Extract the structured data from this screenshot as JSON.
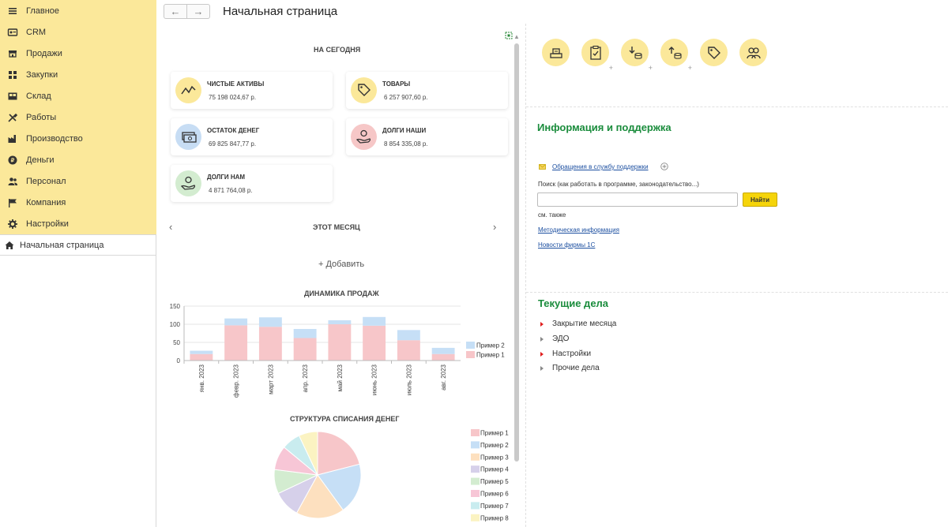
{
  "sidebar": {
    "items": [
      {
        "label": "Главное",
        "icon": "hamburger-icon"
      },
      {
        "label": "CRM",
        "icon": "crm-icon"
      },
      {
        "label": "Продажи",
        "icon": "shop-icon"
      },
      {
        "label": "Закупки",
        "icon": "purchases-icon"
      },
      {
        "label": "Склад",
        "icon": "warehouse-icon"
      },
      {
        "label": "Работы",
        "icon": "tools-icon"
      },
      {
        "label": "Производство",
        "icon": "factory-icon"
      },
      {
        "label": "Деньги",
        "icon": "money-icon"
      },
      {
        "label": "Персонал",
        "icon": "personnel-icon"
      },
      {
        "label": "Компания",
        "icon": "flag-icon"
      },
      {
        "label": "Настройки",
        "icon": "gear-icon"
      }
    ],
    "active": {
      "label": "Начальная страница",
      "icon": "home-icon"
    }
  },
  "header": {
    "title": "Начальная страница"
  },
  "today": {
    "title": "НА СЕГОДНЯ",
    "cards": [
      {
        "title": "ЧИСТЫЕ АКТИВЫ",
        "value": "75 198 024,67 р.",
        "color": "#fbe89a"
      },
      {
        "title": "ТОВАРЫ",
        "value": "6 257 907,60 р.",
        "color": "#fbe89a"
      },
      {
        "title": "ОСТАТОК ДЕНЕГ",
        "value": "69 825 847,77 р.",
        "color": "#c7ddf4"
      },
      {
        "title": "ДОЛГИ НАШИ",
        "value": "8 854 335,08 р.",
        "color": "#f6c7c7"
      },
      {
        "title": "ДОЛГИ НАМ",
        "value": "4 871 764,08 р.",
        "color": "#d3ecd0"
      }
    ]
  },
  "month": {
    "title": "ЭТОТ МЕСЯЦ",
    "add": "+ Добавить"
  },
  "chart_data": [
    {
      "type": "bar",
      "title": "ДИНАМИКА ПРОДАЖ",
      "stacked": true,
      "categories": [
        "янв. 2023",
        "февр. 2023",
        "март 2023",
        "апр. 2023",
        "май 2023",
        "июнь 2023",
        "июль 2023",
        "авг. 2023"
      ],
      "series": [
        {
          "name": "Пример 1",
          "values": [
            18,
            97,
            93,
            62,
            100,
            96,
            56,
            18
          ],
          "color": "#f7c6c9"
        },
        {
          "name": "Пример 2",
          "values": [
            9,
            19,
            26,
            25,
            11,
            24,
            28,
            17
          ],
          "color": "#c6dff6"
        }
      ],
      "ylim": [
        0,
        150
      ],
      "yticks": [
        0,
        50,
        100,
        150
      ],
      "ytick_labels": [
        "0",
        "50",
        "100",
        "150"
      ],
      "grid": true,
      "legend": "right"
    },
    {
      "type": "pie",
      "title": "СТРУКТУРА СПИСАНИЯ ДЕНЕГ",
      "labels": [
        "Пример 1",
        "Пример 2",
        "Пример 3",
        "Пример 4",
        "Пример 5",
        "Пример 6",
        "Пример 7",
        "Пример 8"
      ],
      "values": [
        21,
        19,
        18,
        10,
        9,
        9,
        7,
        7
      ],
      "colors": [
        "#f7c6c9",
        "#c6dff6",
        "#fde0bf",
        "#d6d0ea",
        "#d3ecd0",
        "#f7c6d6",
        "#c9ecef",
        "#fbf3c2"
      ],
      "legend": "right"
    }
  ],
  "actions": {
    "icons": [
      "cash-register-icon",
      "clipboard-check-icon",
      "download-coins-icon",
      "upload-coins-icon",
      "price-tag-icon",
      "users-icon"
    ]
  },
  "support": {
    "title": "Информация и поддержка",
    "requests_link": "Обращения в службу поддержки",
    "search_label": "Поиск (как работать в программе, законодательство...)",
    "search_value": "",
    "search_button": "Найти",
    "see_also": "см. также",
    "links": [
      "Методическая информация",
      "Новости фирмы 1С"
    ]
  },
  "tasks": {
    "title": "Текущие дела",
    "items": [
      {
        "label": "Закрытие месяца",
        "marker": "red"
      },
      {
        "label": "ЭДО",
        "marker": "grey"
      },
      {
        "label": "Настройки",
        "marker": "red"
      },
      {
        "label": "Прочие дела",
        "marker": "grey"
      }
    ]
  }
}
